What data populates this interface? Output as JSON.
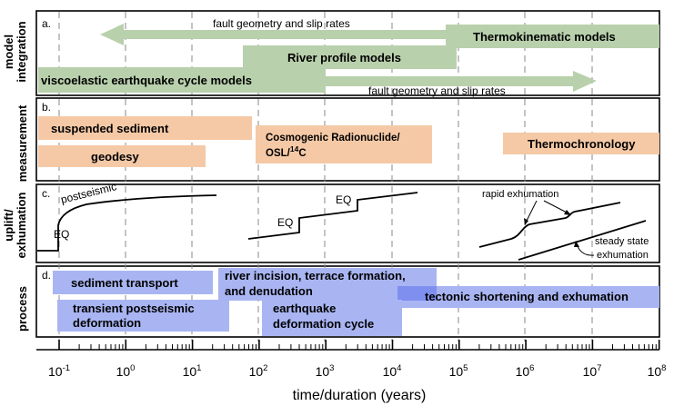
{
  "row_labels": {
    "a": [
      "model",
      "integration"
    ],
    "b": [
      "measurement"
    ],
    "c": [
      "uplift/",
      "exhumation"
    ],
    "d": [
      "process"
    ]
  },
  "panel_letters": [
    "a.",
    "b.",
    "c.",
    "d."
  ],
  "panel_a": {
    "arrow_top": "fault geometry and slip rates",
    "arrow_bottom": "fault geometry and slip rates",
    "thermokinematic": "Thermokinematic models",
    "river_profile": "River profile models",
    "viscoelastic": "viscoelastic earthquake cycle models"
  },
  "panel_b": {
    "suspended_sediment": "suspended sediment",
    "geodesy": "geodesy",
    "cosmogenic_line1": "Cosmogenic Radionuclide/",
    "cosmogenic_line2_prefix": "OSL/",
    "cosmogenic_line2_sup": "14",
    "cosmogenic_line2_suffix": "C",
    "thermochronology": "Thermochronology"
  },
  "panel_c": {
    "postseismic": "postseismic",
    "eq_left": "EQ",
    "eq_mid_lower": "EQ",
    "eq_mid_upper": "EQ",
    "rapid_exhumation": "rapid exhumation",
    "steady_state_line1": "steady state",
    "steady_state_line2": "exhumation"
  },
  "panel_d": {
    "sediment_transport": "sediment transport",
    "transient_line1": "transient postseismic",
    "transient_line2": "deformation",
    "river_line1": "river incision, terrace formation,",
    "river_line2": "and denudation",
    "earthquake_line1": "earthquake",
    "earthquake_line2": "deformation cycle",
    "tectonic": "tectonic shortening and exhumation"
  },
  "x_axis": {
    "label": "time/duration (years)",
    "ticks": [
      {
        "base": "10",
        "exp": "-1"
      },
      {
        "base": "10",
        "exp": "0"
      },
      {
        "base": "10",
        "exp": "1"
      },
      {
        "base": "10",
        "exp": "2"
      },
      {
        "base": "10",
        "exp": "3"
      },
      {
        "base": "10",
        "exp": "4"
      },
      {
        "base": "10",
        "exp": "5"
      },
      {
        "base": "10",
        "exp": "6"
      },
      {
        "base": "10",
        "exp": "7"
      },
      {
        "base": "10",
        "exp": "8"
      }
    ]
  },
  "colors": {
    "model_green": "#b9d0ac",
    "arrow_green": "#b9d0ac",
    "measure_orange": "#f5c9a6",
    "process_blue": "#a9b5f2",
    "process_blue_dark": "#7f8ff0",
    "grid_dash": "#888888"
  }
}
